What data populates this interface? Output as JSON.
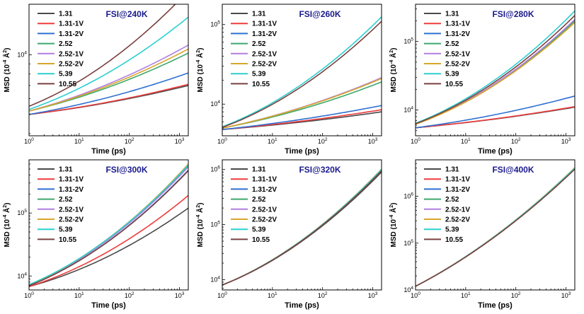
{
  "figure": {
    "panels_layout": "2 rows x 3 columns",
    "shared": {
      "xlabel": "Time (ps)",
      "ylabel_parts": [
        "MSD (10",
        "-4",
        " Å",
        "2",
        ")"
      ],
      "x_ticks": [
        {
          "value": 1,
          "mantissa": "10",
          "exp": "0"
        },
        {
          "value": 10,
          "mantissa": "10",
          "exp": "1"
        },
        {
          "value": 100,
          "mantissa": "10",
          "exp": "2"
        },
        {
          "value": 1000,
          "mantissa": "10",
          "exp": "3"
        }
      ],
      "legend": [
        "1.31",
        "1.31-1V",
        "1.31-2V",
        "2.52",
        "2.52-1V",
        "2.52-2V",
        "5.39",
        "10.55"
      ],
      "series_colors": [
        "#4a4a4a",
        "#ee3b3b",
        "#2e6fd0",
        "#3fa86a",
        "#b07fe0",
        "#d8a62a",
        "#2ccfcf",
        "#7a4040"
      ],
      "title_color": "#1a1a8c"
    }
  },
  "chart_data": [
    {
      "type": "line",
      "title": "FSI@240K",
      "xlabel": "Time (ps)",
      "ylabel": "MSD (10^-4 Å^2)",
      "xscale": "log",
      "yscale": "log",
      "xlim": [
        1,
        1500
      ],
      "ylim": [
        3900,
        18000
      ],
      "y_ticks": [
        {
          "value": 10000,
          "mantissa": "10",
          "exp": "4"
        }
      ],
      "x": [
        1,
        1500
      ],
      "series": [
        {
          "name": "1.31",
          "y0": 5000,
          "y1": 7000,
          "shape": 0.35
        },
        {
          "name": "1.31-1V",
          "y0": 5000,
          "y1": 7100,
          "shape": 0.35
        },
        {
          "name": "1.31-2V",
          "y0": 5000,
          "y1": 8100,
          "shape": 0.35
        },
        {
          "name": "2.52",
          "y0": 5200,
          "y1": 10200,
          "shape": 0.35
        },
        {
          "name": "2.52-1V",
          "y0": 5200,
          "y1": 11200,
          "shape": 0.35
        },
        {
          "name": "2.52-2V",
          "y0": 5200,
          "y1": 10700,
          "shape": 0.35
        },
        {
          "name": "5.39",
          "y0": 5300,
          "y1": 15500,
          "shape": 0.4
        },
        {
          "name": "10.55",
          "y0": 5500,
          "y1": 21000,
          "shape": 0.45
        }
      ]
    },
    {
      "type": "line",
      "title": "FSI@260K",
      "xlabel": "Time (ps)",
      "ylabel": "MSD (10^-4 Å^2)",
      "xscale": "log",
      "yscale": "log",
      "xlim": [
        1,
        1500
      ],
      "ylim": [
        4000,
        180000
      ],
      "y_ticks": [
        {
          "value": 10000,
          "mantissa": "10",
          "exp": "4"
        },
        {
          "value": 100000,
          "mantissa": "10",
          "exp": "5"
        }
      ],
      "x": [
        1,
        1500
      ],
      "series": [
        {
          "name": "1.31",
          "y0": 4800,
          "y1": 8000,
          "shape": 0.3
        },
        {
          "name": "1.31-1V",
          "y0": 4800,
          "y1": 8500,
          "shape": 0.3
        },
        {
          "name": "1.31-2V",
          "y0": 4800,
          "y1": 9600,
          "shape": 0.3
        },
        {
          "name": "2.52",
          "y0": 5000,
          "y1": 19000,
          "shape": 0.35
        },
        {
          "name": "2.52-1V",
          "y0": 5000,
          "y1": 21500,
          "shape": 0.35
        },
        {
          "name": "2.52-2V",
          "y0": 5000,
          "y1": 21000,
          "shape": 0.35
        },
        {
          "name": "5.39",
          "y0": 5200,
          "y1": 125000,
          "shape": 0.45
        },
        {
          "name": "10.55",
          "y0": 5100,
          "y1": 110000,
          "shape": 0.45
        }
      ]
    },
    {
      "type": "line",
      "title": "FSI@280K",
      "xlabel": "Time (ps)",
      "ylabel": "MSD (10^-4 Å^2)",
      "xscale": "log",
      "yscale": "log",
      "xlim": [
        1,
        1500
      ],
      "ylim": [
        4200,
        350000
      ],
      "y_ticks": [
        {
          "value": 10000,
          "mantissa": "10",
          "exp": "4"
        },
        {
          "value": 100000,
          "mantissa": "10",
          "exp": "5"
        }
      ],
      "x": [
        1,
        1500
      ],
      "series": [
        {
          "name": "1.31",
          "y0": 5500,
          "y1": 11000,
          "shape": 0.3
        },
        {
          "name": "1.31-1V",
          "y0": 5500,
          "y1": 11200,
          "shape": 0.3
        },
        {
          "name": "1.31-2V",
          "y0": 5500,
          "y1": 16000,
          "shape": 0.35
        },
        {
          "name": "2.52",
          "y0": 6200,
          "y1": 200000,
          "shape": 0.45
        },
        {
          "name": "2.52-1V",
          "y0": 6200,
          "y1": 210000,
          "shape": 0.45
        },
        {
          "name": "2.52-2V",
          "y0": 6200,
          "y1": 190000,
          "shape": 0.45
        },
        {
          "name": "5.39",
          "y0": 6400,
          "y1": 280000,
          "shape": 0.45
        },
        {
          "name": "10.55",
          "y0": 6300,
          "y1": 240000,
          "shape": 0.45
        }
      ]
    },
    {
      "type": "line",
      "title": "FSI@300K",
      "xlabel": "Time (ps)",
      "ylabel": "MSD (10^-4 Å^2)",
      "xscale": "log",
      "yscale": "log",
      "xlim": [
        1,
        1500
      ],
      "ylim": [
        6000,
        700000
      ],
      "y_ticks": [
        {
          "value": 10000,
          "mantissa": "10",
          "exp": "4"
        },
        {
          "value": 100000,
          "mantissa": "10",
          "exp": "5"
        }
      ],
      "x": [
        1,
        1500
      ],
      "series": [
        {
          "name": "1.31",
          "y0": 6800,
          "y1": 120000,
          "shape": 0.45
        },
        {
          "name": "1.31-1V",
          "y0": 6800,
          "y1": 190000,
          "shape": 0.45
        },
        {
          "name": "1.31-2V",
          "y0": 7000,
          "y1": 480000,
          "shape": 0.45
        },
        {
          "name": "2.52",
          "y0": 7200,
          "y1": 560000,
          "shape": 0.45
        },
        {
          "name": "2.52-1V",
          "y0": 7200,
          "y1": 540000,
          "shape": 0.45
        },
        {
          "name": "2.52-2V",
          "y0": 7200,
          "y1": 600000,
          "shape": 0.45
        },
        {
          "name": "5.39",
          "y0": 7300,
          "y1": 580000,
          "shape": 0.45
        },
        {
          "name": "10.55",
          "y0": 7000,
          "y1": 470000,
          "shape": 0.45
        }
      ]
    },
    {
      "type": "line",
      "title": "FSI@320K",
      "xlabel": "Time (ps)",
      "ylabel": "MSD (10^-4 Å^2)",
      "xscale": "log",
      "yscale": "log",
      "xlim": [
        1,
        1500
      ],
      "ylim": [
        6500,
        1500000
      ],
      "y_ticks": [
        {
          "value": 10000,
          "mantissa": "10",
          "exp": "4"
        },
        {
          "value": 100000,
          "mantissa": "10",
          "exp": "5"
        },
        {
          "value": 1000000,
          "mantissa": "10",
          "exp": "6"
        }
      ],
      "x": [
        1,
        1500
      ],
      "series": [
        {
          "name": "1.31",
          "y0": 8000,
          "y1": 900000,
          "shape": 0.45
        },
        {
          "name": "1.31-1V",
          "y0": 8000,
          "y1": 1000000,
          "shape": 0.45
        },
        {
          "name": "1.31-2V",
          "y0": 8000,
          "y1": 950000,
          "shape": 0.45
        },
        {
          "name": "2.52",
          "y0": 8000,
          "y1": 1000000,
          "shape": 0.45
        },
        {
          "name": "2.52-1V",
          "y0": 8000,
          "y1": 980000,
          "shape": 0.45
        },
        {
          "name": "2.52-2V",
          "y0": 8000,
          "y1": 1020000,
          "shape": 0.45
        },
        {
          "name": "5.39",
          "y0": 8000,
          "y1": 1000000,
          "shape": 0.45
        },
        {
          "name": "10.55",
          "y0": 8000,
          "y1": 950000,
          "shape": 0.45
        }
      ]
    },
    {
      "type": "line",
      "title": "FSI@400K",
      "xlabel": "Time (ps)",
      "ylabel": "MSD (10^-4 Å^2)",
      "xscale": "log",
      "yscale": "log",
      "xlim": [
        1,
        1500
      ],
      "ylim": [
        10000,
        6000000
      ],
      "y_ticks": [
        {
          "value": 10000,
          "mantissa": "10",
          "exp": "4"
        },
        {
          "value": 100000,
          "mantissa": "10",
          "exp": "5"
        },
        {
          "value": 1000000,
          "mantissa": "10",
          "exp": "6"
        }
      ],
      "x": [
        1,
        1500
      ],
      "series": [
        {
          "name": "1.31",
          "y0": 12000,
          "y1": 3800000,
          "shape": 0.3
        },
        {
          "name": "1.31-1V",
          "y0": 12000,
          "y1": 4000000,
          "shape": 0.3
        },
        {
          "name": "1.31-2V",
          "y0": 12000,
          "y1": 3900000,
          "shape": 0.3
        },
        {
          "name": "2.52",
          "y0": 12000,
          "y1": 4000000,
          "shape": 0.3
        },
        {
          "name": "2.52-1V",
          "y0": 12000,
          "y1": 3950000,
          "shape": 0.3
        },
        {
          "name": "2.52-2V",
          "y0": 12000,
          "y1": 4100000,
          "shape": 0.3
        },
        {
          "name": "5.39",
          "y0": 12000,
          "y1": 4000000,
          "shape": 0.3
        },
        {
          "name": "10.55",
          "y0": 12000,
          "y1": 3800000,
          "shape": 0.3
        }
      ]
    }
  ]
}
